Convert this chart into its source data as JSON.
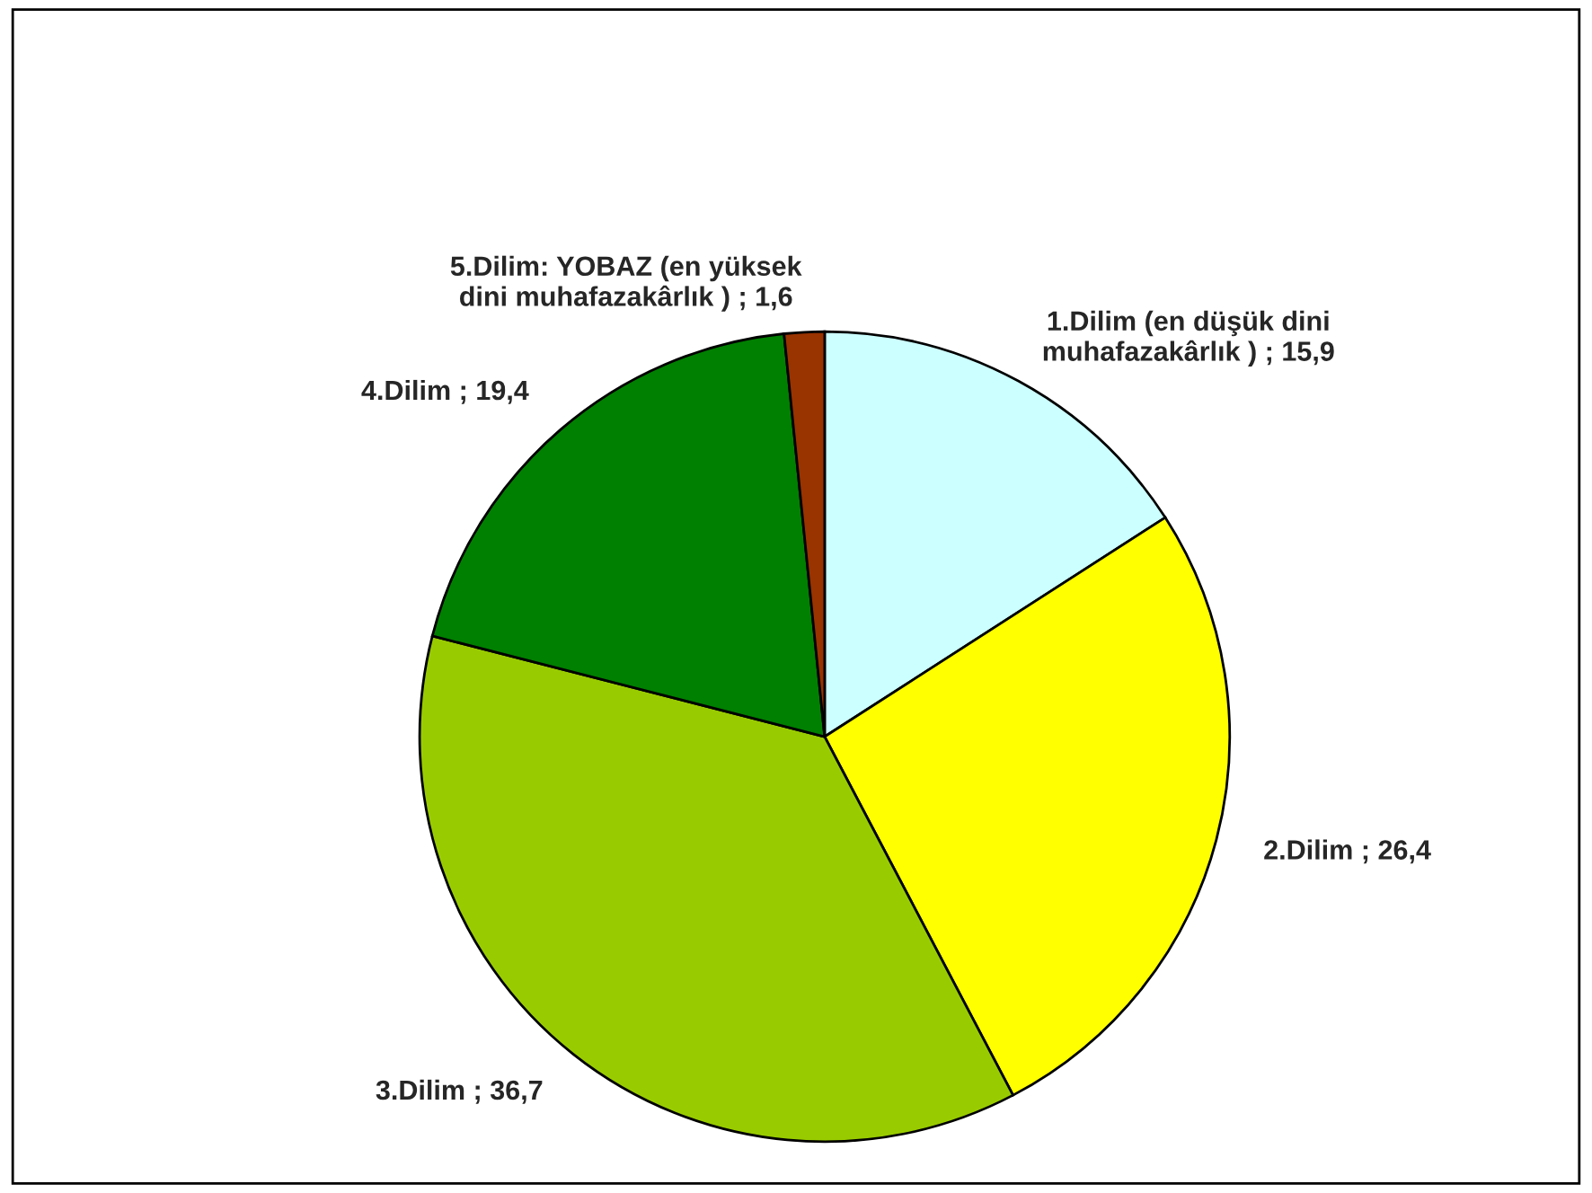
{
  "chart_data": {
    "type": "pie",
    "categories": [
      "1.Dilim (en düşük dini muhafazakârlık )",
      "2.Dilim",
      "3.Dilim",
      "4.Dilim",
      "5.Dilim: YOBAZ (en yüksek dini muhafazakârlık )"
    ],
    "values": [
      15.9,
      26.4,
      36.7,
      19.4,
      1.6
    ],
    "value_labels": [
      "15,9",
      "26,4",
      "36,7",
      "19,4",
      "1,6"
    ],
    "colors": [
      "#ccffff",
      "#ffff00",
      "#99cc00",
      "#008000",
      "#993300"
    ],
    "legend": false
  }
}
